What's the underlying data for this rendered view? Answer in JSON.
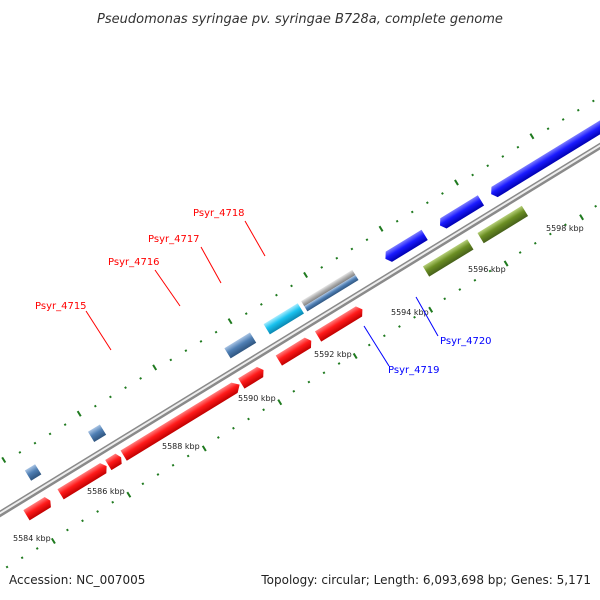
{
  "title": "Pseudomonas syringae pv. syringae B728a, complete genome",
  "footer": {
    "accession": "Accession: NC_007005",
    "summary": "Topology: circular; Length: 6,093,698 bp; Genes: 5,171"
  },
  "colors": {
    "backbone": "#8a8a8a",
    "tick": "#1f7a1f",
    "red_gene": "#ff1a1a",
    "blue_gene": "#1a1aff",
    "light_blue": "#19c2ef",
    "steel_blue": "#4f7fb4",
    "gray": "#b4b4b4",
    "green": "#6b8e23"
  },
  "kbp_labels": [
    "5584 kbp",
    "5586 kbp",
    "5588 kbp",
    "5590 kbp",
    "5592 kbp",
    "5594 kbp",
    "5596 kbp",
    "5598 kbp"
  ],
  "gene_labels": [
    {
      "id": "Psyr_4715",
      "text": "Psyr_4715",
      "color": "#ff0000"
    },
    {
      "id": "Psyr_4716",
      "text": "Psyr_4716",
      "color": "#ff0000"
    },
    {
      "id": "Psyr_4717",
      "text": "Psyr_4717",
      "color": "#ff0000"
    },
    {
      "id": "Psyr_4718",
      "text": "Psyr_4718",
      "color": "#ff0000"
    },
    {
      "id": "Psyr_4719",
      "text": "Psyr_4719",
      "color": "#0000ff"
    },
    {
      "id": "Psyr_4720",
      "text": "Psyr_4720",
      "color": "#0000ff"
    }
  ]
}
